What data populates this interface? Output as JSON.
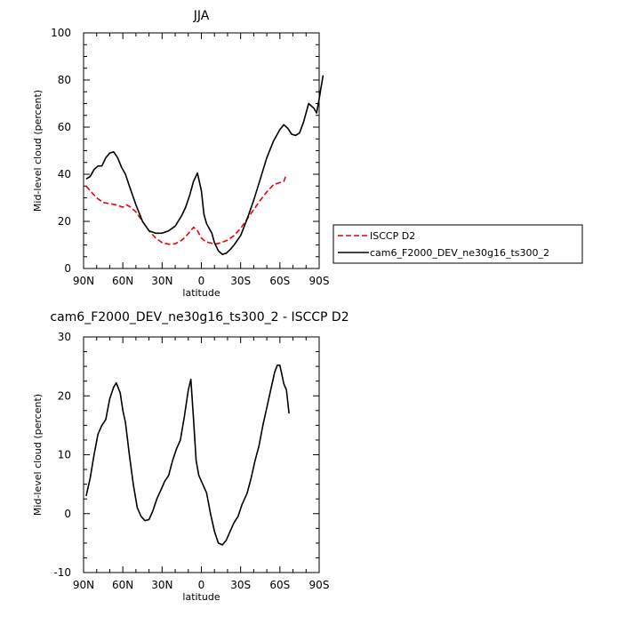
{
  "chart_data": [
    {
      "type": "line",
      "title": "JJA",
      "xlabel": "latitude",
      "ylabel": "Mid-level cloud (percent)",
      "xlim": [
        90,
        -90
      ],
      "ylim": [
        0,
        100
      ],
      "xticks": [
        90,
        60,
        30,
        0,
        -30,
        -60,
        -90
      ],
      "xtick_labels": [
        "90N",
        "60N",
        "30N",
        "0",
        "30S",
        "60S",
        "90S"
      ],
      "yticks": [
        0,
        20,
        40,
        60,
        80,
        100
      ],
      "ytick_labels": [
        "0",
        "20",
        "40",
        "60",
        "80",
        "100"
      ],
      "legend_position": "right",
      "series": [
        {
          "name": "ISCCP D2",
          "color": "#e8000b",
          "dash": "dashed",
          "points": [
            [
              88,
              35
            ],
            [
              85,
              33
            ],
            [
              80,
              30
            ],
            [
              75,
              28
            ],
            [
              70,
              27.5
            ],
            [
              65,
              27
            ],
            [
              60,
              26
            ],
            [
              57,
              27
            ],
            [
              54,
              26
            ],
            [
              50,
              24
            ],
            [
              45,
              20
            ],
            [
              40,
              16
            ],
            [
              35,
              13
            ],
            [
              30,
              11
            ],
            [
              25,
              10.3
            ],
            [
              20,
              10.5
            ],
            [
              15,
              12
            ],
            [
              12,
              13.5
            ],
            [
              9,
              15.5
            ],
            [
              6,
              17.5
            ],
            [
              3,
              16
            ],
            [
              0,
              13
            ],
            [
              -3,
              11.5
            ],
            [
              -6,
              11
            ],
            [
              -9,
              10.5
            ],
            [
              -12,
              10.5
            ],
            [
              -15,
              11
            ],
            [
              -20,
              12
            ],
            [
              -25,
              14
            ],
            [
              -30,
              17
            ],
            [
              -35,
              21
            ],
            [
              -40,
              25
            ],
            [
              -45,
              29
            ],
            [
              -50,
              32.5
            ],
            [
              -55,
              35.5
            ],
            [
              -60,
              36.5
            ],
            [
              -63,
              37
            ],
            [
              -65,
              40
            ]
          ]
        },
        {
          "name": "cam6_F2000_DEV_ne30g16_ts300_2",
          "color": "#000000",
          "dash": "solid",
          "points": [
            [
              88,
              38
            ],
            [
              85,
              39
            ],
            [
              82,
              42
            ],
            [
              79,
              43.5
            ],
            [
              76,
              43.5
            ],
            [
              73,
              47
            ],
            [
              70,
              49
            ],
            [
              67,
              49.5
            ],
            [
              64,
              47
            ],
            [
              61,
              43
            ],
            [
              58,
              40
            ],
            [
              55,
              35
            ],
            [
              50,
              27
            ],
            [
              45,
              20
            ],
            [
              40,
              16
            ],
            [
              35,
              15
            ],
            [
              30,
              15
            ],
            [
              25,
              16
            ],
            [
              20,
              18
            ],
            [
              15,
              22.5
            ],
            [
              12,
              26
            ],
            [
              9,
              31
            ],
            [
              6,
              37
            ],
            [
              3,
              40.5
            ],
            [
              0,
              33
            ],
            [
              -2,
              23
            ],
            [
              -4,
              19
            ],
            [
              -6,
              17
            ],
            [
              -8,
              15
            ],
            [
              -10,
              11
            ],
            [
              -13,
              7.5
            ],
            [
              -16,
              6
            ],
            [
              -19,
              6.5
            ],
            [
              -22,
              8
            ],
            [
              -25,
              10
            ],
            [
              -30,
              14
            ],
            [
              -35,
              21
            ],
            [
              -40,
              29
            ],
            [
              -45,
              38
            ],
            [
              -50,
              47
            ],
            [
              -55,
              54
            ],
            [
              -60,
              59
            ],
            [
              -63,
              61
            ],
            [
              -66,
              59.5
            ],
            [
              -69,
              57
            ],
            [
              -72,
              56.5
            ],
            [
              -75,
              57.5
            ],
            [
              -78,
              62
            ],
            [
              -82,
              70
            ],
            [
              -86,
              68
            ],
            [
              -88,
              66
            ],
            [
              -90,
              72
            ],
            [
              -93,
              82
            ]
          ]
        }
      ]
    },
    {
      "type": "line",
      "title": "cam6_F2000_DEV_ne30g16_ts300_2 - ISCCP D2",
      "xlabel": "latitude",
      "ylabel": "Mid-level cloud (percent)",
      "xlim": [
        90,
        -90
      ],
      "ylim": [
        -10,
        30
      ],
      "xticks": [
        90,
        60,
        30,
        0,
        -30,
        -60,
        -90
      ],
      "xtick_labels": [
        "90N",
        "60N",
        "30N",
        "0",
        "30S",
        "60S",
        "90S"
      ],
      "yticks": [
        -10,
        0,
        10,
        20,
        30
      ],
      "ytick_labels": [
        "-10",
        "0",
        "10",
        "20",
        "30"
      ],
      "series": [
        {
          "color": "#000000",
          "dash": "solid",
          "points": [
            [
              88,
              3
            ],
            [
              85,
              6
            ],
            [
              82,
              10
            ],
            [
              79,
              13.5
            ],
            [
              76,
              15
            ],
            [
              73,
              16
            ],
            [
              70,
              19.5
            ],
            [
              67,
              21.5
            ],
            [
              65,
              22.2
            ],
            [
              62,
              20.5
            ],
            [
              60,
              17.5
            ],
            [
              58,
              15.5
            ],
            [
              55,
              10
            ],
            [
              52,
              5
            ],
            [
              49,
              1
            ],
            [
              46,
              -0.5
            ],
            [
              43,
              -1.2
            ],
            [
              40,
              -1
            ],
            [
              37,
              0.5
            ],
            [
              34,
              2.5
            ],
            [
              31,
              4
            ],
            [
              28,
              5.5
            ],
            [
              25,
              6.5
            ],
            [
              22,
              9
            ],
            [
              19,
              11
            ],
            [
              16,
              12.5
            ],
            [
              13,
              16.5
            ],
            [
              10,
              21
            ],
            [
              8,
              22.8
            ],
            [
              6,
              16
            ],
            [
              4,
              9
            ],
            [
              2,
              6.5
            ],
            [
              -1,
              5
            ],
            [
              -4,
              3.5
            ],
            [
              -7,
              0
            ],
            [
              -10,
              -3
            ],
            [
              -13,
              -5
            ],
            [
              -16,
              -5.3
            ],
            [
              -19,
              -4.5
            ],
            [
              -22,
              -3
            ],
            [
              -25,
              -1.5
            ],
            [
              -28,
              -0.5
            ],
            [
              -31,
              1.5
            ],
            [
              -35,
              3.5
            ],
            [
              -38,
              6
            ],
            [
              -41,
              9
            ],
            [
              -44,
              11.5
            ],
            [
              -47,
              15
            ],
            [
              -50,
              18
            ],
            [
              -53,
              21
            ],
            [
              -56,
              24
            ],
            [
              -58,
              25.2
            ],
            [
              -60,
              25.2
            ],
            [
              -63,
              22
            ],
            [
              -65,
              21
            ],
            [
              -67,
              17
            ]
          ]
        }
      ]
    }
  ]
}
